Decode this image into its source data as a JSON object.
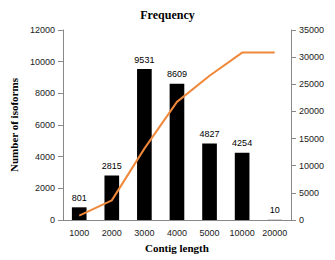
{
  "chart_data": {
    "type": "bar",
    "title": "Frequency",
    "x_label": "Contig length",
    "y_label": "Number of isoforms",
    "categories": [
      "1000",
      "2000",
      "3000",
      "4000",
      "5000",
      "10000",
      "20000"
    ],
    "series": [
      {
        "type": "bar",
        "color": "#000000",
        "data_labels": true,
        "values": [
          801,
          2815,
          9531,
          8609,
          4827,
          4254,
          10
        ]
      },
      {
        "type": "line",
        "color": "#f0883a",
        "axis": "y2",
        "marker": "none",
        "values": [
          801,
          3616,
          13147,
          21756,
          26583,
          30837,
          30847
        ]
      }
    ],
    "ylim": [
      0,
      12000
    ],
    "yticks": [
      0,
      2000,
      4000,
      6000,
      8000,
      10000,
      12000
    ],
    "y2lim": [
      0,
      35000
    ],
    "y2ticks": [
      0,
      5000,
      10000,
      15000,
      20000,
      25000,
      30000,
      35000
    ],
    "grid": false
  }
}
